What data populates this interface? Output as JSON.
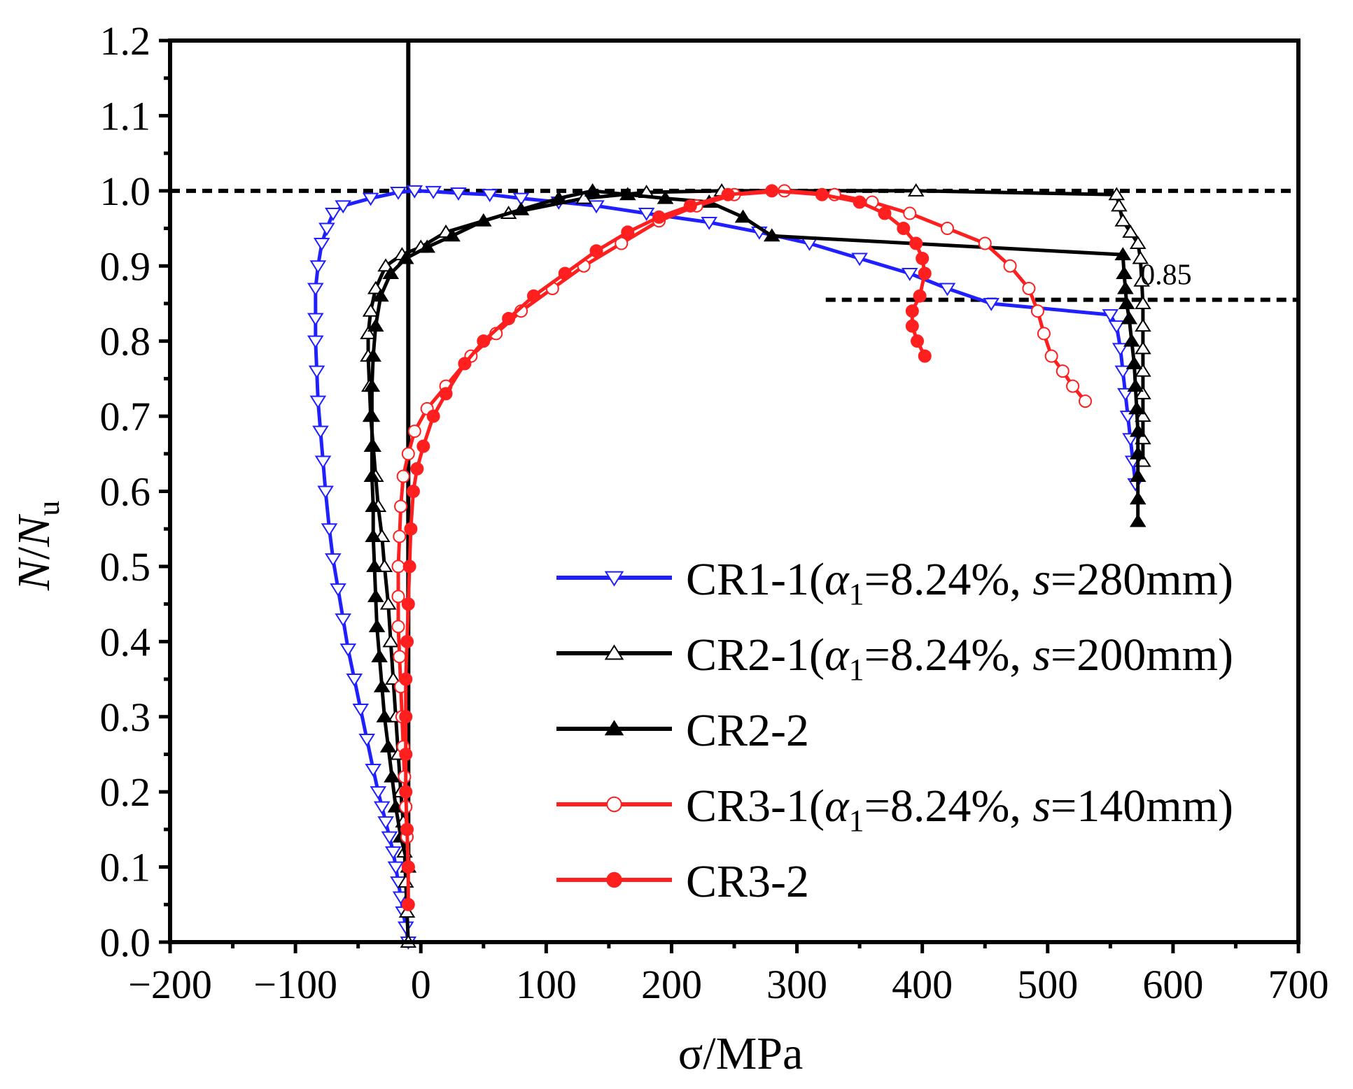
{
  "chart_data": {
    "type": "line",
    "xlabel": "σ/MPa",
    "ylabel_main": "N",
    "ylabel_sep": "/",
    "ylabel_denom": "N",
    "ylabel_sub": "u",
    "xlim": [
      -200,
      700
    ],
    "ylim": [
      0,
      1.2
    ],
    "x_ticks": [
      -200,
      -100,
      0,
      100,
      200,
      300,
      400,
      500,
      600,
      700
    ],
    "x_tick_labels": [
      "−200",
      "−100",
      "0",
      "100",
      "200",
      "300",
      "400",
      "500",
      "600",
      "700"
    ],
    "y_ticks": [
      0,
      0.1,
      0.2,
      0.3,
      0.4,
      0.5,
      0.6,
      0.7,
      0.8,
      0.9,
      1.0,
      1.1,
      1.2
    ],
    "y_tick_labels": [
      "0.0",
      "0.1",
      "0.2",
      "0.3",
      "0.4",
      "0.5",
      "0.6",
      "0.7",
      "0.8",
      "0.9",
      "1.0",
      "1.1",
      "1.2"
    ],
    "grid": false,
    "legend_position": "bottom-right",
    "reference_lines": [
      {
        "orientation": "horizontal",
        "y": 1.0,
        "x_from": -200,
        "x_to": 700,
        "style": "dashed"
      },
      {
        "orientation": "horizontal",
        "y": 0.855,
        "x_from": 323,
        "x_to": 700,
        "style": "dashed",
        "label": "0.85"
      },
      {
        "orientation": "vertical",
        "x": -10,
        "y_from": 0.1,
        "y_to": 1.2,
        "style": "solid"
      }
    ],
    "series": [
      {
        "name": "CR1-1",
        "legend_prefix": "CR1-1(",
        "legend_alpha": "α",
        "legend_sub": "1",
        "legend_mid": "=8.24%, ",
        "legend_s": "s",
        "legend_end": "=280mm)",
        "color": "#1f1fff",
        "marker": "triangle-down",
        "filled": false,
        "points": [
          [
            -10,
            0.0
          ],
          [
            -12,
            0.02
          ],
          [
            -14,
            0.04
          ],
          [
            -16,
            0.06
          ],
          [
            -18,
            0.08
          ],
          [
            -20,
            0.1
          ],
          [
            -22,
            0.12
          ],
          [
            -25,
            0.14
          ],
          [
            -28,
            0.16
          ],
          [
            -31,
            0.18
          ],
          [
            -34,
            0.2
          ],
          [
            -38,
            0.23
          ],
          [
            -43,
            0.27
          ],
          [
            -48,
            0.31
          ],
          [
            -53,
            0.35
          ],
          [
            -58,
            0.39
          ],
          [
            -62,
            0.43
          ],
          [
            -66,
            0.47
          ],
          [
            -70,
            0.51
          ],
          [
            -73,
            0.55
          ],
          [
            -76,
            0.6
          ],
          [
            -78,
            0.64
          ],
          [
            -80,
            0.68
          ],
          [
            -82,
            0.72
          ],
          [
            -83,
            0.76
          ],
          [
            -84,
            0.8
          ],
          [
            -84,
            0.83
          ],
          [
            -84,
            0.87
          ],
          [
            -82,
            0.9
          ],
          [
            -79,
            0.93
          ],
          [
            -75,
            0.95
          ],
          [
            -70,
            0.97
          ],
          [
            -62,
            0.98
          ],
          [
            -40,
            0.99
          ],
          [
            -18,
            0.998
          ],
          [
            -5,
            1.0
          ],
          [
            10,
            0.999
          ],
          [
            30,
            0.997
          ],
          [
            55,
            0.995
          ],
          [
            80,
            0.99
          ],
          [
            110,
            0.985
          ],
          [
            140,
            0.98
          ],
          [
            180,
            0.97
          ],
          [
            230,
            0.958
          ],
          [
            270,
            0.945
          ],
          [
            310,
            0.93
          ],
          [
            350,
            0.91
          ],
          [
            390,
            0.89
          ],
          [
            420,
            0.87
          ],
          [
            455,
            0.85
          ],
          [
            550,
            0.835
          ],
          [
            555,
            0.82
          ],
          [
            558,
            0.79
          ],
          [
            560,
            0.76
          ],
          [
            562,
            0.73
          ],
          [
            564,
            0.7
          ],
          [
            566,
            0.67
          ],
          [
            568,
            0.64
          ],
          [
            570,
            0.61
          ]
        ]
      },
      {
        "name": "CR2-1",
        "legend_prefix": "CR2-1(",
        "legend_alpha": "α",
        "legend_sub": "1",
        "legend_mid": "=8.24%, ",
        "legend_s": "s",
        "legend_end": "=200mm)",
        "color": "#000000",
        "marker": "triangle-up",
        "filled": false,
        "points": [
          [
            -10,
            0.0
          ],
          [
            -11,
            0.04
          ],
          [
            -12,
            0.08
          ],
          [
            -13,
            0.12
          ],
          [
            -14,
            0.16
          ],
          [
            -16,
            0.2
          ],
          [
            -18,
            0.25
          ],
          [
            -20,
            0.3
          ],
          [
            -22,
            0.35
          ],
          [
            -24,
            0.4
          ],
          [
            -26,
            0.45
          ],
          [
            -29,
            0.5
          ],
          [
            -31,
            0.54
          ],
          [
            -34,
            0.58
          ],
          [
            -36,
            0.62
          ],
          [
            -38,
            0.66
          ],
          [
            -40,
            0.7
          ],
          [
            -41,
            0.74
          ],
          [
            -42,
            0.78
          ],
          [
            -42,
            0.81
          ],
          [
            -40,
            0.84
          ],
          [
            -36,
            0.87
          ],
          [
            -28,
            0.9
          ],
          [
            -15,
            0.915
          ],
          [
            0,
            0.925
          ],
          [
            20,
            0.945
          ],
          [
            70,
            0.97
          ],
          [
            130,
            0.99
          ],
          [
            180,
            0.998
          ],
          [
            240,
            1.0
          ],
          [
            395,
            1.0
          ],
          [
            555,
            0.995
          ],
          [
            557,
            0.98
          ],
          [
            560,
            0.96
          ],
          [
            566,
            0.945
          ],
          [
            572,
            0.93
          ],
          [
            574,
            0.91
          ],
          [
            575,
            0.88
          ],
          [
            576,
            0.85
          ],
          [
            576,
            0.82
          ],
          [
            576,
            0.79
          ],
          [
            576,
            0.76
          ],
          [
            576,
            0.73
          ],
          [
            576,
            0.7
          ],
          [
            576,
            0.67
          ],
          [
            576,
            0.64
          ]
        ]
      },
      {
        "name": "CR2-2",
        "legend_prefix": "CR2-2",
        "color": "#000000",
        "marker": "triangle-up",
        "filled": true,
        "points": [
          [
            -10,
            0.1
          ],
          [
            -16,
            0.14
          ],
          [
            -20,
            0.18
          ],
          [
            -23,
            0.22
          ],
          [
            -26,
            0.26
          ],
          [
            -29,
            0.3
          ],
          [
            -31,
            0.34
          ],
          [
            -33,
            0.38
          ],
          [
            -35,
            0.42
          ],
          [
            -36,
            0.46
          ],
          [
            -37,
            0.5
          ],
          [
            -38,
            0.54
          ],
          [
            -38,
            0.58
          ],
          [
            -39,
            0.62
          ],
          [
            -39,
            0.66
          ],
          [
            -39,
            0.7
          ],
          [
            -39,
            0.74
          ],
          [
            -38,
            0.78
          ],
          [
            -36,
            0.82
          ],
          [
            -32,
            0.86
          ],
          [
            -24,
            0.89
          ],
          [
            -12,
            0.91
          ],
          [
            5,
            0.925
          ],
          [
            25,
            0.94
          ],
          [
            50,
            0.96
          ],
          [
            80,
            0.975
          ],
          [
            110,
            0.99
          ],
          [
            137,
            1.0
          ],
          [
            165,
            0.995
          ],
          [
            195,
            0.99
          ],
          [
            230,
            0.985
          ],
          [
            257,
            0.965
          ],
          [
            280,
            0.94
          ],
          [
            560,
            0.915
          ],
          [
            561,
            0.89
          ],
          [
            562,
            0.87
          ],
          [
            563,
            0.85
          ],
          [
            565,
            0.83
          ],
          [
            567,
            0.8
          ],
          [
            569,
            0.77
          ],
          [
            570,
            0.74
          ],
          [
            571,
            0.71
          ],
          [
            572,
            0.68
          ],
          [
            572,
            0.65
          ],
          [
            572,
            0.62
          ],
          [
            572,
            0.59
          ],
          [
            572,
            0.56
          ]
        ]
      },
      {
        "name": "CR3-1",
        "legend_prefix": "CR3-1(",
        "legend_alpha": "α",
        "legend_sub": "1",
        "legend_mid": "=8.24%, ",
        "legend_s": "s",
        "legend_end": "=140mm)",
        "color": "#ff1f1f",
        "marker": "circle",
        "filled": false,
        "points": [
          [
            -10,
            0.1
          ],
          [
            -11,
            0.14
          ],
          [
            -12,
            0.18
          ],
          [
            -13,
            0.22
          ],
          [
            -14,
            0.26
          ],
          [
            -15,
            0.3
          ],
          [
            -16,
            0.34
          ],
          [
            -17,
            0.38
          ],
          [
            -18,
            0.42
          ],
          [
            -18,
            0.46
          ],
          [
            -18,
            0.5
          ],
          [
            -17,
            0.54
          ],
          [
            -16,
            0.58
          ],
          [
            -14,
            0.62
          ],
          [
            -10,
            0.65
          ],
          [
            -5,
            0.68
          ],
          [
            5,
            0.71
          ],
          [
            20,
            0.74
          ],
          [
            40,
            0.78
          ],
          [
            60,
            0.81
          ],
          [
            80,
            0.84
          ],
          [
            105,
            0.87
          ],
          [
            130,
            0.9
          ],
          [
            160,
            0.93
          ],
          [
            190,
            0.96
          ],
          [
            220,
            0.98
          ],
          [
            250,
            0.995
          ],
          [
            290,
            1.0
          ],
          [
            330,
            0.995
          ],
          [
            360,
            0.985
          ],
          [
            390,
            0.97
          ],
          [
            420,
            0.95
          ],
          [
            450,
            0.93
          ],
          [
            470,
            0.9
          ],
          [
            485,
            0.87
          ],
          [
            492,
            0.84
          ],
          [
            497,
            0.81
          ],
          [
            503,
            0.78
          ],
          [
            512,
            0.76
          ],
          [
            520,
            0.74
          ],
          [
            530,
            0.72
          ]
        ]
      },
      {
        "name": "CR3-2",
        "legend_prefix": "CR3-2",
        "color": "#ff1f1f",
        "marker": "circle",
        "filled": true,
        "points": [
          [
            -10,
            0.05
          ],
          [
            -10,
            0.1
          ],
          [
            -11,
            0.15
          ],
          [
            -12,
            0.2
          ],
          [
            -12,
            0.25
          ],
          [
            -12,
            0.3
          ],
          [
            -12,
            0.35
          ],
          [
            -11,
            0.4
          ],
          [
            -10,
            0.45
          ],
          [
            -9,
            0.5
          ],
          [
            -8,
            0.55
          ],
          [
            -6,
            0.6
          ],
          [
            -3,
            0.63
          ],
          [
            2,
            0.66
          ],
          [
            10,
            0.7
          ],
          [
            20,
            0.73
          ],
          [
            35,
            0.77
          ],
          [
            50,
            0.8
          ],
          [
            70,
            0.83
          ],
          [
            90,
            0.86
          ],
          [
            115,
            0.89
          ],
          [
            140,
            0.92
          ],
          [
            165,
            0.945
          ],
          [
            190,
            0.965
          ],
          [
            215,
            0.98
          ],
          [
            245,
            0.995
          ],
          [
            280,
            1.0
          ],
          [
            320,
            0.995
          ],
          [
            350,
            0.985
          ],
          [
            370,
            0.97
          ],
          [
            385,
            0.95
          ],
          [
            395,
            0.93
          ],
          [
            400,
            0.91
          ],
          [
            402,
            0.89
          ],
          [
            398,
            0.86
          ],
          [
            392,
            0.84
          ],
          [
            392,
            0.82
          ],
          [
            396,
            0.8
          ],
          [
            402,
            0.78
          ]
        ]
      }
    ]
  }
}
